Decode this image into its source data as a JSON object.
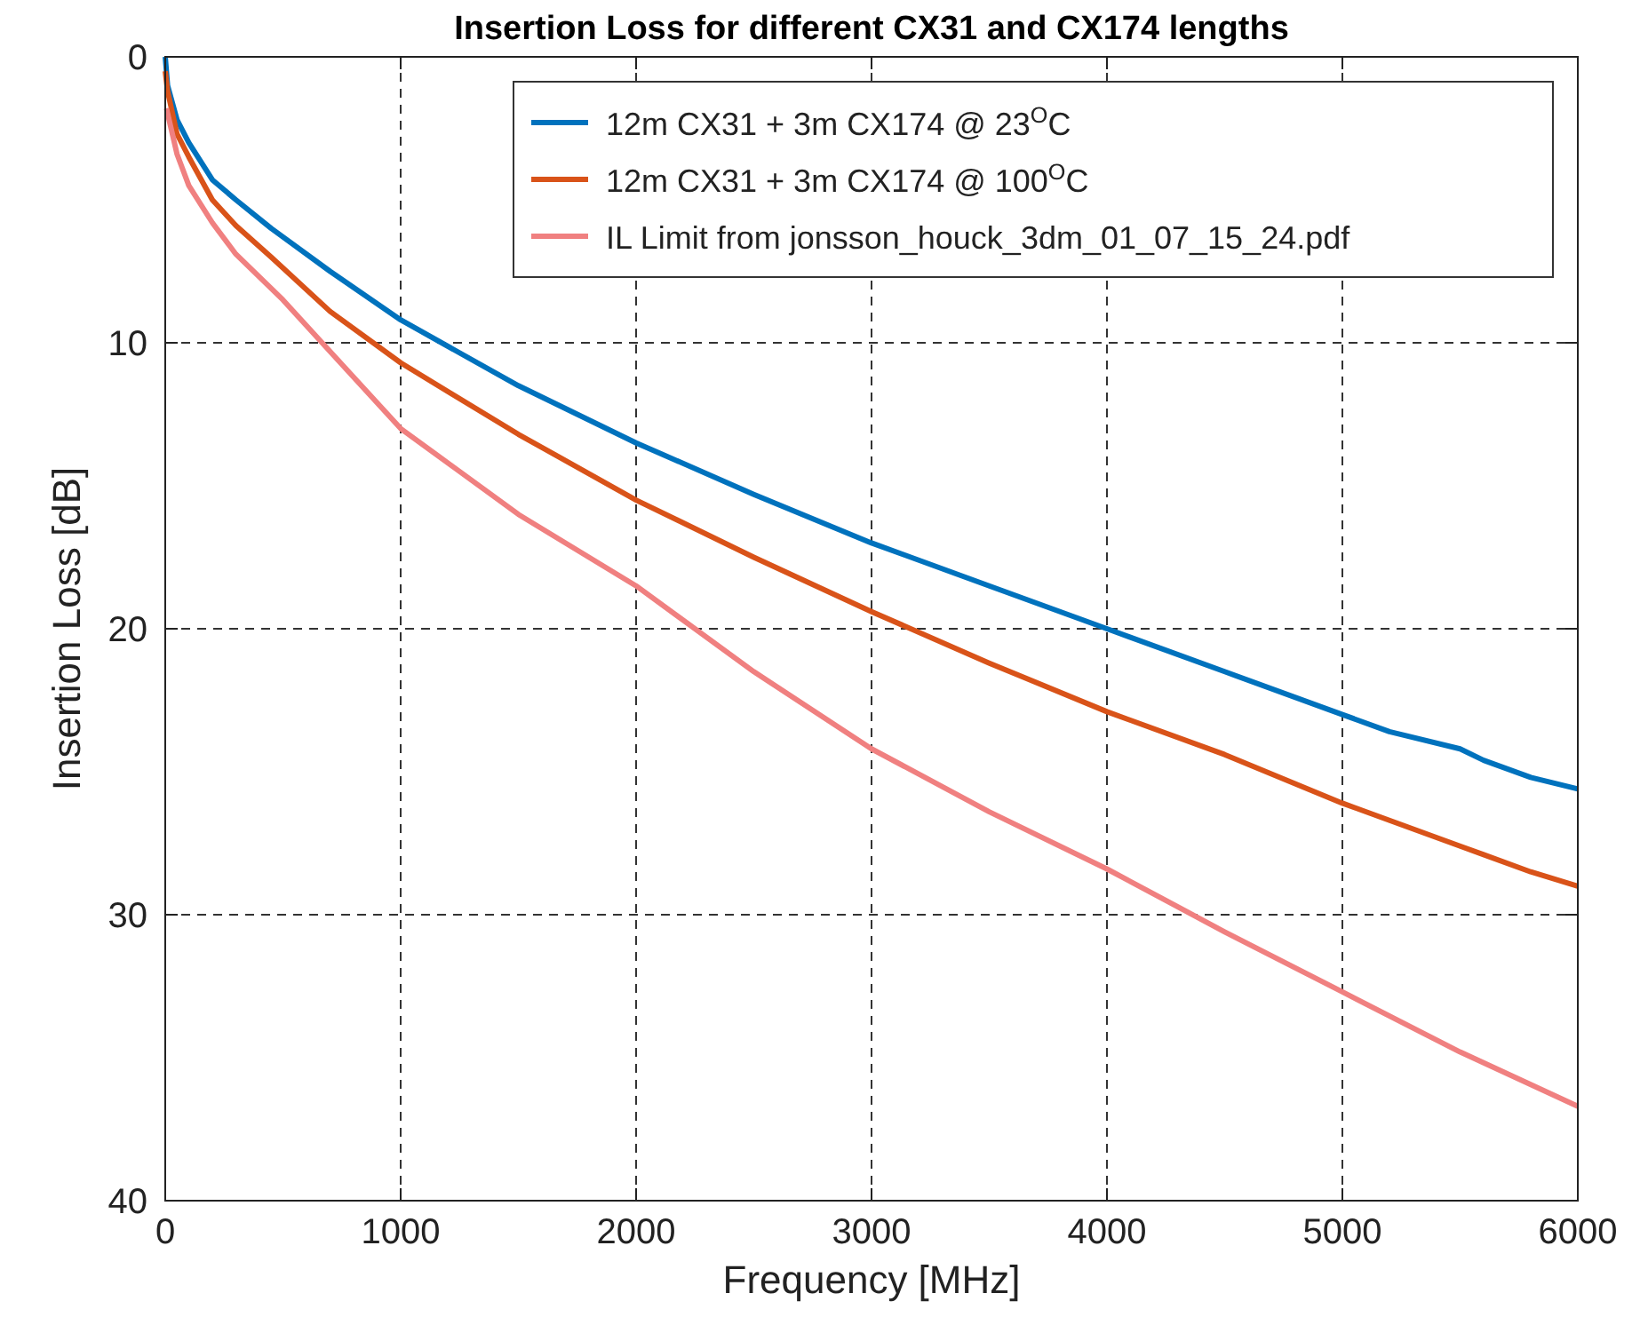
{
  "chart_data": {
    "type": "line",
    "title": "Insertion Loss for different CX31 and CX174 lengths",
    "xlabel": "Frequency [MHz]",
    "ylabel": "Insertion Loss [dB]",
    "xlim": [
      0,
      6000
    ],
    "xticks": [
      0,
      1000,
      2000,
      3000,
      4000,
      5000,
      6000
    ],
    "ylim": [
      40,
      0
    ],
    "yticks": [
      0,
      10,
      20,
      30,
      40
    ],
    "grid": true,
    "legend": "top right",
    "line_style": "solid",
    "marker": "none",
    "series": [
      {
        "name": "12m CX31 + 3m CX174 @ 23$^{O}$C",
        "color": "#0072bd",
        "x": [
          0,
          10,
          50,
          100,
          200,
          300,
          450,
          700,
          1000,
          1500,
          2000,
          2500,
          3000,
          3500,
          4000,
          4500,
          5000,
          5200,
          5500,
          5600,
          5800,
          6000
        ],
        "values": [
          0,
          1.0,
          2.2,
          3.0,
          4.3,
          5.0,
          6.0,
          7.5,
          9.2,
          11.5,
          13.5,
          15.3,
          17,
          18.5,
          20,
          21.5,
          23,
          23.6,
          24.2,
          24.6,
          25.2,
          25.6
        ]
      },
      {
        "name": "12m CX31 + 3m CX174 @ 100$^{O}$C",
        "color": "#d95319",
        "x": [
          0,
          10,
          50,
          100,
          200,
          300,
          450,
          700,
          1000,
          1500,
          2000,
          2500,
          3000,
          3500,
          4000,
          4500,
          5000,
          5200,
          5500,
          5600,
          5800,
          6000
        ],
        "values": [
          0.5,
          1.2,
          2.7,
          3.5,
          5.0,
          5.9,
          7.0,
          8.9,
          10.7,
          13.2,
          15.5,
          17.5,
          19.4,
          21.2,
          22.9,
          24.4,
          26.1,
          26.7,
          27.6,
          27.9,
          28.5,
          29
        ]
      },
      {
        "name": "IL Limit from jonsson_houck_3dm_01_07_15_24.pdf",
        "color": "#f08080",
        "x": [
          5,
          50,
          100,
          200,
          300,
          500,
          700,
          1000,
          1500,
          2000,
          2500,
          3000,
          3500,
          4000,
          4500,
          5000,
          5500,
          6000
        ],
        "values": [
          1.8,
          3.4,
          4.5,
          5.8,
          6.9,
          8.5,
          10.3,
          13,
          16,
          18.5,
          21.5,
          24.2,
          26.4,
          28.4,
          30.6,
          32.7,
          34.8,
          36.7
        ]
      }
    ]
  }
}
